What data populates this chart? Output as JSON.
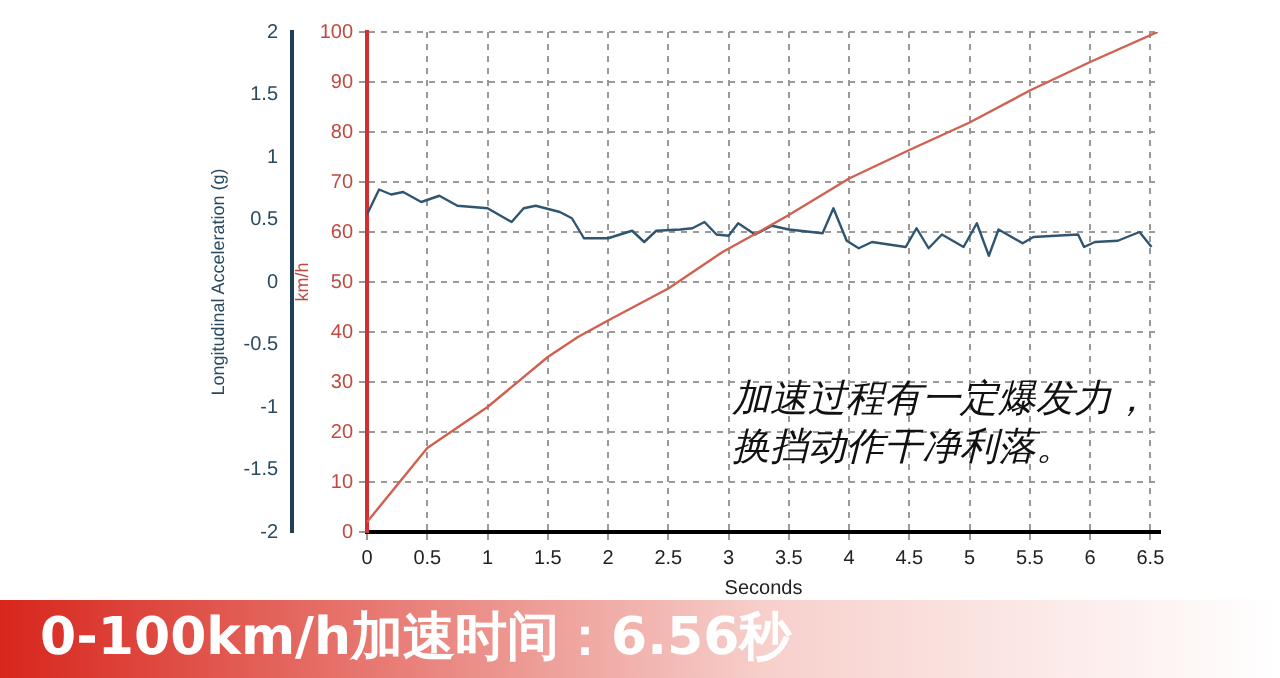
{
  "chart_data": {
    "type": "line",
    "xlabel": "Seconds",
    "ylabel": "km/h",
    "y2label": "Longitudinal Acceleration (g)",
    "xlim": [
      0,
      6.58
    ],
    "xticks": [
      0,
      0.5,
      1,
      1.5,
      2,
      2.5,
      3,
      3.5,
      4,
      4.5,
      5,
      5.5,
      6,
      6.5
    ],
    "ylim": [
      0,
      100
    ],
    "yticks": [
      0,
      10,
      20,
      30,
      40,
      50,
      60,
      70,
      80,
      90,
      100
    ],
    "y2lim": [
      -2,
      2
    ],
    "y2ticks": [
      -2,
      -1.5,
      -1,
      -0.5,
      0,
      0.5,
      1,
      1.5,
      2
    ],
    "grid": true,
    "legend": false,
    "marker": "none",
    "line_style": "solid",
    "series": [
      {
        "color": "#d0604f",
        "x": [
          0,
          0.5,
          1,
          1.5,
          1.75,
          2,
          2.5,
          2.95,
          3.25,
          3.5,
          4,
          4.5,
          5,
          5.5,
          6,
          6.56
        ],
        "values": [
          2,
          16.8,
          25,
          35,
          39,
          42.3,
          48.7,
          56,
          60,
          63.4,
          70.7,
          76.4,
          81.9,
          88.3,
          94,
          100
        ]
      },
      {
        "color": "#2f5570",
        "axis": "y2",
        "x": [
          0,
          0.1,
          0.2,
          0.3,
          0.45,
          0.6,
          0.75,
          1.0,
          1.2,
          1.3,
          1.4,
          1.6,
          1.7,
          1.8,
          2.0,
          2.2,
          2.3,
          2.4,
          2.6,
          2.7,
          2.8,
          2.9,
          3.0,
          3.08,
          3.22,
          3.36,
          3.5,
          3.78,
          3.87,
          3.98,
          4.08,
          4.19,
          4.47,
          4.56,
          4.66,
          4.77,
          4.95,
          5.06,
          5.16,
          5.24,
          5.44,
          5.53,
          5.9,
          5.95,
          6.04,
          6.23,
          6.41,
          6.51
        ],
        "values": [
          0.54,
          0.74,
          0.7,
          0.72,
          0.64,
          0.69,
          0.61,
          0.59,
          0.48,
          0.59,
          0.61,
          0.56,
          0.51,
          0.35,
          0.35,
          0.41,
          0.32,
          0.41,
          0.42,
          0.43,
          0.48,
          0.38,
          0.37,
          0.47,
          0.38,
          0.45,
          0.42,
          0.39,
          0.59,
          0.33,
          0.27,
          0.32,
          0.28,
          0.43,
          0.27,
          0.38,
          0.28,
          0.47,
          0.21,
          0.42,
          0.31,
          0.36,
          0.38,
          0.28,
          0.32,
          0.33,
          0.4,
          0.28
        ]
      }
    ],
    "annotations": [
      "加速过程有一定爆发力，",
      "换挡动作干净利落。",
      "0-100km/h加速时间：6.56秒"
    ]
  }
}
